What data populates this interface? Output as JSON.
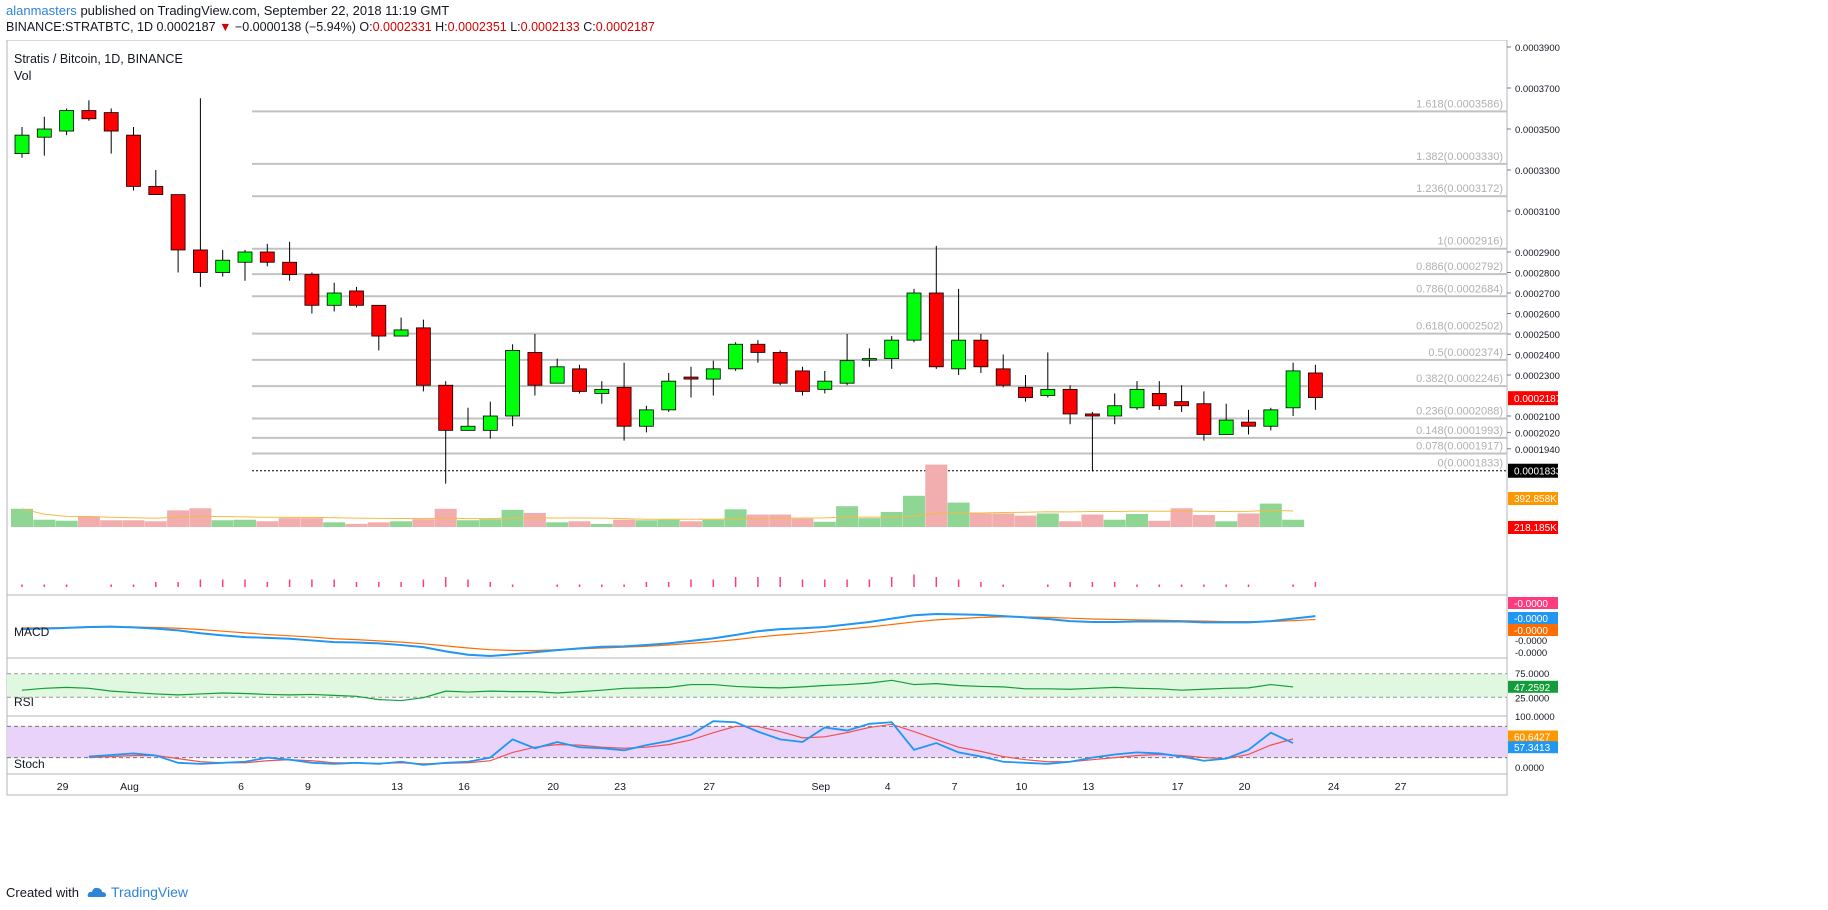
{
  "header": {
    "author": "alanmasters",
    "published_text": "published on TradingView.com, September 22, 2018 11:19 GMT",
    "symbol": "BINANCE:STRATBTC, 1D",
    "last": "0.0002187",
    "change": "−0.0000138 (−5.94%)",
    "o_label": "O:",
    "o_value": "0.0002331",
    "h_label": "H:",
    "h_value": "0.0002351",
    "l_label": "L:",
    "l_value": "0.0002133",
    "c_label": "C:",
    "c_value": "0.0002187"
  },
  "footer": {
    "created_with": "Created with",
    "brand": "TradingView"
  },
  "colors": {
    "up": "#00ff0a",
    "down": "#ff0000",
    "fib": "#c2c2c2",
    "macd": "#2196f3",
    "signal": "#ff6d00",
    "rsi": "#139d3a",
    "stoch_k": "#2196f3",
    "stoch_d": "#ef5350"
  },
  "chart_data": {
    "type": "candlestick",
    "title": "Stratis / Bitcoin, 1D, BINANCE",
    "subtitle": "Vol",
    "y_ticks": [
      "0.0003900",
      "0.0003700",
      "0.0003500",
      "0.0003300",
      "0.0003100",
      "0.0002900",
      "0.0002800",
      "0.0002700",
      "0.0002600",
      "0.0002500",
      "0.0002400",
      "0.0002300",
      "0.0002100",
      "0.0002020",
      "0.0001940"
    ],
    "y_tick_values": [
      0.00039,
      0.00037,
      0.00035,
      0.00033,
      0.00031,
      0.00029,
      0.00028,
      0.00027,
      0.00026,
      0.00025,
      0.00024,
      0.00023,
      0.00021,
      0.000202,
      0.000194
    ],
    "x_ticks": [
      {
        "label": "29",
        "index": 2
      },
      {
        "label": "Aug",
        "index": 5
      },
      {
        "label": "6",
        "index": 10
      },
      {
        "label": "9",
        "index": 13
      },
      {
        "label": "13",
        "index": 17
      },
      {
        "label": "16",
        "index": 20
      },
      {
        "label": "20",
        "index": 24
      },
      {
        "label": "23",
        "index": 27
      },
      {
        "label": "27",
        "index": 31
      },
      {
        "label": "Sep",
        "index": 36
      },
      {
        "label": "4",
        "index": 39
      },
      {
        "label": "7",
        "index": 42
      },
      {
        "label": "10",
        "index": 45
      },
      {
        "label": "13",
        "index": 48
      },
      {
        "label": "17",
        "index": 52
      },
      {
        "label": "20",
        "index": 55
      },
      {
        "label": "24",
        "index": 59
      },
      {
        "label": "27",
        "index": 62
      }
    ],
    "fib_levels": [
      {
        "label": "1.618(0.0003586)",
        "value": 0.0003586
      },
      {
        "label": "1.382(0.0003330)",
        "value": 0.000333
      },
      {
        "label": "1.236(0.0003172)",
        "value": 0.0003172
      },
      {
        "label": "1(0.0002916)",
        "value": 0.0002916
      },
      {
        "label": "0.886(0.0002792)",
        "value": 0.0002792
      },
      {
        "label": "0.786(0.0002684)",
        "value": 0.0002684
      },
      {
        "label": "0.618(0.0002502)",
        "value": 0.0002502
      },
      {
        "label": "0.5(0.0002374)",
        "value": 0.0002374
      },
      {
        "label": "0.382(0.0002246)",
        "value": 0.0002246
      },
      {
        "label": "0.236(0.0002088)",
        "value": 0.0002088
      },
      {
        "label": "0.148(0.0001993)",
        "value": 0.0001993
      },
      {
        "label": "0.078(0.0001917)",
        "value": 0.0001917
      },
      {
        "label": "0(0.0001833)",
        "value": 0.0001833
      }
    ],
    "candles": [
      {
        "o": 0.000338,
        "h": 0.000351,
        "l": 0.000336,
        "c": 0.000347
      },
      {
        "o": 0.000346,
        "h": 0.000356,
        "l": 0.000337,
        "c": 0.00035
      },
      {
        "o": 0.000349,
        "h": 0.00036,
        "l": 0.000347,
        "c": 0.000359
      },
      {
        "o": 0.000359,
        "h": 0.000364,
        "l": 0.000354,
        "c": 0.000355
      },
      {
        "o": 0.000358,
        "h": 0.00036,
        "l": 0.000338,
        "c": 0.000349
      },
      {
        "o": 0.000347,
        "h": 0.000351,
        "l": 0.00032,
        "c": 0.000322
      },
      {
        "o": 0.000322,
        "h": 0.00033,
        "l": 0.000318,
        "c": 0.000318
      },
      {
        "o": 0.000318,
        "h": 0.000318,
        "l": 0.00028,
        "c": 0.000291
      },
      {
        "o": 0.000291,
        "h": 0.000365,
        "l": 0.000273,
        "c": 0.00028
      },
      {
        "o": 0.00028,
        "h": 0.000291,
        "l": 0.000278,
        "c": 0.000286
      },
      {
        "o": 0.000285,
        "h": 0.000291,
        "l": 0.000276,
        "c": 0.00029
      },
      {
        "o": 0.00029,
        "h": 0.000294,
        "l": 0.000283,
        "c": 0.000285
      },
      {
        "o": 0.000285,
        "h": 0.000295,
        "l": 0.000276,
        "c": 0.000279
      },
      {
        "o": 0.000279,
        "h": 0.00028,
        "l": 0.00026,
        "c": 0.000264
      },
      {
        "o": 0.000264,
        "h": 0.000275,
        "l": 0.000261,
        "c": 0.00027
      },
      {
        "o": 0.000271,
        "h": 0.000273,
        "l": 0.000263,
        "c": 0.000264
      },
      {
        "o": 0.000264,
        "h": 0.000264,
        "l": 0.000242,
        "c": 0.000249
      },
      {
        "o": 0.000249,
        "h": 0.000258,
        "l": 0.000249,
        "c": 0.000252
      },
      {
        "o": 0.000253,
        "h": 0.000257,
        "l": 0.000222,
        "c": 0.000225
      },
      {
        "o": 0.000225,
        "h": 0.000227,
        "l": 0.000177,
        "c": 0.000203
      },
      {
        "o": 0.000203,
        "h": 0.000214,
        "l": 0.000203,
        "c": 0.000205
      },
      {
        "o": 0.000203,
        "h": 0.000217,
        "l": 0.000199,
        "c": 0.00021
      },
      {
        "o": 0.00021,
        "h": 0.000245,
        "l": 0.000205,
        "c": 0.000242
      },
      {
        "o": 0.000241,
        "h": 0.00025,
        "l": 0.00022,
        "c": 0.000225
      },
      {
        "o": 0.000226,
        "h": 0.000238,
        "l": 0.000226,
        "c": 0.000234
      },
      {
        "o": 0.000233,
        "h": 0.000235,
        "l": 0.000221,
        "c": 0.000222
      },
      {
        "o": 0.000221,
        "h": 0.000227,
        "l": 0.000216,
        "c": 0.000223
      },
      {
        "o": 0.000224,
        "h": 0.000236,
        "l": 0.000198,
        "c": 0.000205
      },
      {
        "o": 0.000205,
        "h": 0.000215,
        "l": 0.000202,
        "c": 0.000213
      },
      {
        "o": 0.000213,
        "h": 0.000231,
        "l": 0.000212,
        "c": 0.000227
      },
      {
        "o": 0.000229,
        "h": 0.000234,
        "l": 0.000219,
        "c": 0.000228
      },
      {
        "o": 0.000228,
        "h": 0.000237,
        "l": 0.00022,
        "c": 0.000233
      },
      {
        "o": 0.000233,
        "h": 0.000246,
        "l": 0.000232,
        "c": 0.000245
      },
      {
        "o": 0.000245,
        "h": 0.000247,
        "l": 0.000236,
        "c": 0.000241
      },
      {
        "o": 0.000241,
        "h": 0.000242,
        "l": 0.000225,
        "c": 0.000226
      },
      {
        "o": 0.000232,
        "h": 0.000234,
        "l": 0.00022,
        "c": 0.000222
      },
      {
        "o": 0.000223,
        "h": 0.000232,
        "l": 0.000221,
        "c": 0.000227
      },
      {
        "o": 0.000226,
        "h": 0.00025,
        "l": 0.000225,
        "c": 0.000237
      },
      {
        "o": 0.000238,
        "h": 0.000243,
        "l": 0.000234,
        "c": 0.000238
      },
      {
        "o": 0.000238,
        "h": 0.000249,
        "l": 0.000233,
        "c": 0.000247
      },
      {
        "o": 0.000247,
        "h": 0.000272,
        "l": 0.000246,
        "c": 0.00027
      },
      {
        "o": 0.00027,
        "h": 0.000293,
        "l": 0.000233,
        "c": 0.000234
      },
      {
        "o": 0.000233,
        "h": 0.000272,
        "l": 0.00023,
        "c": 0.000247
      },
      {
        "o": 0.000247,
        "h": 0.00025,
        "l": 0.000231,
        "c": 0.000234
      },
      {
        "o": 0.000233,
        "h": 0.00024,
        "l": 0.000224,
        "c": 0.000225
      },
      {
        "o": 0.000224,
        "h": 0.00023,
        "l": 0.000217,
        "c": 0.000219
      },
      {
        "o": 0.00022,
        "h": 0.000241,
        "l": 0.000219,
        "c": 0.000223
      },
      {
        "o": 0.000223,
        "h": 0.000225,
        "l": 0.000206,
        "c": 0.000211
      },
      {
        "o": 0.000211,
        "h": 0.000212,
        "l": 0.000183,
        "c": 0.00021
      },
      {
        "o": 0.00021,
        "h": 0.000221,
        "l": 0.000206,
        "c": 0.000215
      },
      {
        "o": 0.000214,
        "h": 0.000227,
        "l": 0.000213,
        "c": 0.000223
      },
      {
        "o": 0.000221,
        "h": 0.000227,
        "l": 0.000213,
        "c": 0.000215
      },
      {
        "o": 0.000217,
        "h": 0.000225,
        "l": 0.000212,
        "c": 0.000215
      },
      {
        "o": 0.000216,
        "h": 0.000222,
        "l": 0.000198,
        "c": 0.000201
      },
      {
        "o": 0.000201,
        "h": 0.000216,
        "l": 0.000201,
        "c": 0.000208
      },
      {
        "o": 0.000207,
        "h": 0.000213,
        "l": 0.000201,
        "c": 0.000205
      },
      {
        "o": 0.000205,
        "h": 0.000214,
        "l": 0.000203,
        "c": 0.000213
      },
      {
        "o": 0.000214,
        "h": 0.000236,
        "l": 0.00021,
        "c": 0.000232
      },
      {
        "o": 0.000231,
        "h": 0.000235,
        "l": 0.000213,
        "c": 0.000219
      }
    ],
    "volume": [
      35,
      14,
      12,
      20,
      13,
      13,
      11,
      32,
      36,
      13,
      14,
      11,
      17,
      17,
      9,
      6,
      9,
      11,
      15,
      35,
      13,
      15,
      33,
      27,
      9,
      11,
      6,
      14,
      13,
      14,
      11,
      14,
      34,
      24,
      24,
      16,
      10,
      40,
      17,
      29,
      60,
      120,
      47,
      26,
      26,
      22,
      26,
      11,
      24,
      14,
      25,
      12,
      36,
      23,
      11,
      26,
      45,
      14
    ],
    "volume_labels": [
      "392.858K",
      "218.185K"
    ],
    "price_labels": {
      "last": "0.0002187",
      "fib_zero": "0.0001833"
    },
    "indicators": {
      "macd": {
        "name": "MACD",
        "labels": [
          "-0.0000",
          "-0.0000",
          "-0.0000"
        ],
        "axis": [
          "-0.0000",
          "-0.0000"
        ],
        "macd_line": [
          -0.5,
          -0.4,
          -0.2,
          0.0,
          0.1,
          -0.1,
          -0.4,
          -0.8,
          -1.5,
          -2.0,
          -2.4,
          -2.6,
          -2.8,
          -3.2,
          -3.6,
          -3.7,
          -3.9,
          -4.3,
          -4.8,
          -5.8,
          -6.6,
          -6.9,
          -6.5,
          -6.0,
          -5.5,
          -5.1,
          -4.7,
          -4.6,
          -4.3,
          -3.9,
          -3.3,
          -2.7,
          -1.9,
          -1.0,
          -0.5,
          -0.3,
          0.0,
          0.6,
          1.2,
          2.0,
          2.8,
          3.1,
          3.0,
          2.9,
          2.6,
          2.3,
          1.9,
          1.4,
          1.2,
          1.2,
          1.3,
          1.3,
          1.3,
          1.1,
          1.1,
          1.1,
          1.4,
          2.0,
          2.6
        ],
        "signal_line": [
          -0.2,
          -0.2,
          -0.2,
          -0.1,
          0.0,
          0.0,
          -0.1,
          -0.3,
          -0.6,
          -1.0,
          -1.4,
          -1.8,
          -2.1,
          -2.4,
          -2.8,
          -3.0,
          -3.3,
          -3.6,
          -4.0,
          -4.5,
          -5.0,
          -5.4,
          -5.6,
          -5.6,
          -5.4,
          -5.2,
          -5.0,
          -4.8,
          -4.6,
          -4.3,
          -3.9,
          -3.5,
          -3.0,
          -2.4,
          -1.9,
          -1.5,
          -1.0,
          -0.5,
          0.0,
          0.6,
          1.2,
          1.7,
          2.0,
          2.3,
          2.4,
          2.4,
          2.3,
          2.1,
          1.9,
          1.8,
          1.7,
          1.6,
          1.5,
          1.4,
          1.3,
          1.3,
          1.3,
          1.5,
          1.8
        ],
        "hist": [
          -1,
          -1,
          -1,
          0,
          1,
          -1,
          -2,
          -2,
          -3,
          -3,
          -3,
          -2,
          -3,
          -3,
          -3,
          -2,
          -2,
          -2,
          -3,
          -4,
          -3,
          -2,
          -1,
          0,
          1,
          1,
          1,
          1,
          2,
          2,
          3,
          3,
          4,
          4,
          4,
          3,
          3,
          3,
          3,
          4,
          5,
          4,
          3,
          2,
          1,
          0,
          -1,
          -2,
          -2,
          -2,
          -1,
          -1,
          -1,
          -1,
          -1,
          -1,
          0,
          1,
          2
        ]
      },
      "rsi": {
        "name": "RSI",
        "value_label": "47.2592",
        "axis": [
          "75.0000",
          "25.0000"
        ],
        "values": [
          40,
          44,
          46,
          44,
          38,
          35,
          32,
          30,
          32,
          34,
          33,
          31,
          30,
          31,
          29,
          27,
          20,
          18,
          24,
          38,
          36,
          38,
          37,
          37,
          34,
          37,
          40,
          44,
          45,
          46,
          52,
          52,
          48,
          46,
          45,
          47,
          50,
          52,
          55,
          61,
          52,
          54,
          50,
          48,
          47,
          43,
          43,
          42,
          44,
          46,
          44,
          43,
          40,
          42,
          44,
          45,
          52,
          47
        ]
      },
      "stoch": {
        "name": "Stoch",
        "k_label": "57.3413",
        "d_label": "60.6427",
        "axis": [
          "100.0000",
          "0.0000"
        ],
        "k": [
          22,
          25,
          28,
          24,
          10,
          8,
          10,
          12,
          20,
          16,
          10,
          8,
          10,
          8,
          12,
          6,
          10,
          12,
          20,
          55,
          38,
          50,
          40,
          38,
          34,
          44,
          52,
          64,
          90,
          88,
          70,
          55,
          50,
          78,
          72,
          85,
          88,
          35,
          48,
          30,
          22,
          12,
          10,
          8,
          12,
          20,
          26,
          30,
          28,
          22,
          14,
          18,
          35,
          68,
          48
        ],
        "d": [
          20,
          22,
          24,
          24,
          18,
          12,
          10,
          10,
          14,
          16,
          14,
          10,
          10,
          9,
          10,
          8,
          9,
          10,
          14,
          30,
          40,
          45,
          44,
          40,
          38,
          40,
          45,
          54,
          68,
          80,
          80,
          70,
          58,
          60,
          68,
          78,
          84,
          70,
          55,
          40,
          32,
          22,
          16,
          12,
          12,
          16,
          20,
          24,
          26,
          24,
          20,
          18,
          26,
          44,
          56
        ]
      }
    }
  }
}
